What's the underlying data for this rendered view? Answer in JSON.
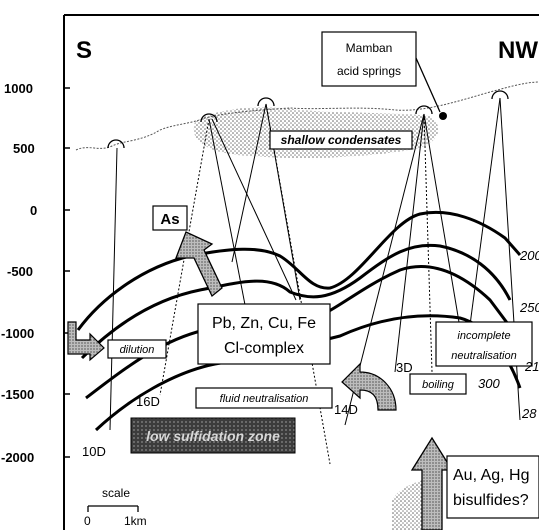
{
  "direction": {
    "left": "S",
    "right": "NW"
  },
  "y_axis_ticks": [
    "1000",
    "500",
    "0",
    "-500",
    "-1000",
    "-1500",
    "-2000"
  ],
  "callouts": {
    "springs": [
      "Mamban",
      "acid springs"
    ],
    "condensates": "shallow condensates",
    "arsenic": "As",
    "metals": [
      "Pb, Zn, Cu, Fe",
      "Cl-complex"
    ],
    "dilution": "dilution",
    "fluid_neutralisation": "fluid neutralisation",
    "incomplete_neutralisation": [
      "incomplete",
      "neutralisation"
    ],
    "boiling": "boiling",
    "upflow_zone": "low sulfidation zone",
    "precious": [
      "Au, Ag, Hg",
      "bisulfides?"
    ]
  },
  "isotherms": [
    "200",
    "250",
    "300",
    "21",
    "28"
  ],
  "wells": [
    "16D",
    "10D",
    "3D",
    "14D"
  ],
  "scale": {
    "label": "scale",
    "start": "0",
    "end": "1km"
  },
  "colors": {
    "line": "#000000",
    "stipple": "#9a9a9a",
    "arrow_fill": "#b8b8b8",
    "zone_fill": "#4a4a4a"
  }
}
